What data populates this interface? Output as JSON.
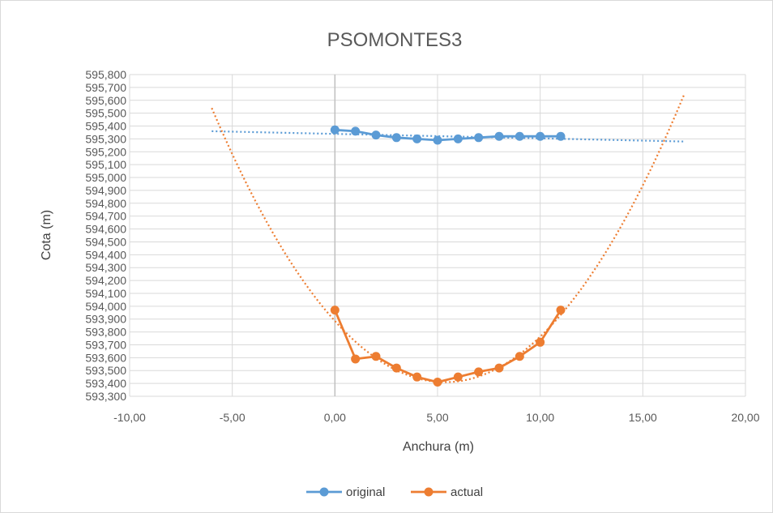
{
  "chart_data": {
    "type": "scatter",
    "title": "PSOMONTES3",
    "xlabel": "Anchura (m)",
    "ylabel": "Cota (m)",
    "xlim": [
      -10,
      20
    ],
    "ylim": [
      593.3,
      595.8
    ],
    "x_ticks": [
      "-10,00",
      "-5,00",
      "0,00",
      "5,00",
      "10,00",
      "15,00",
      "20,00"
    ],
    "y_ticks": [
      "593,300",
      "593,400",
      "593,500",
      "593,600",
      "593,700",
      "593,800",
      "593,900",
      "594,000",
      "594,100",
      "594,200",
      "594,300",
      "594,400",
      "594,500",
      "594,600",
      "594,700",
      "594,800",
      "594,900",
      "595,000",
      "595,100",
      "595,200",
      "595,300",
      "595,400",
      "595,500",
      "595,600",
      "595,700",
      "595,800"
    ],
    "grid": true,
    "legend_position": "bottom",
    "series": [
      {
        "name": "original",
        "color": "#5b9bd5",
        "x": [
          0,
          1,
          2,
          3,
          4,
          5,
          6,
          7,
          8,
          9,
          10,
          11
        ],
        "y": [
          595.37,
          595.36,
          595.33,
          595.31,
          595.3,
          595.29,
          595.3,
          595.31,
          595.32,
          595.32,
          595.32,
          595.32
        ],
        "trendline": {
          "kind": "linear",
          "x": [
            -6,
            17
          ],
          "y": [
            595.36,
            595.28
          ]
        }
      },
      {
        "name": "actual",
        "color": "#ed7d31",
        "x": [
          0,
          1,
          2,
          3,
          4,
          5,
          6,
          7,
          8,
          9,
          10,
          11
        ],
        "y": [
          593.97,
          593.59,
          593.61,
          593.52,
          593.45,
          593.41,
          593.45,
          593.49,
          593.52,
          593.61,
          593.72,
          593.97
        ],
        "trendline": {
          "kind": "polynomial-2",
          "points": [
            [
              -6,
              595.54
            ],
            [
              5.25,
              593.41
            ],
            [
              17,
              595.64
            ]
          ]
        }
      }
    ]
  }
}
